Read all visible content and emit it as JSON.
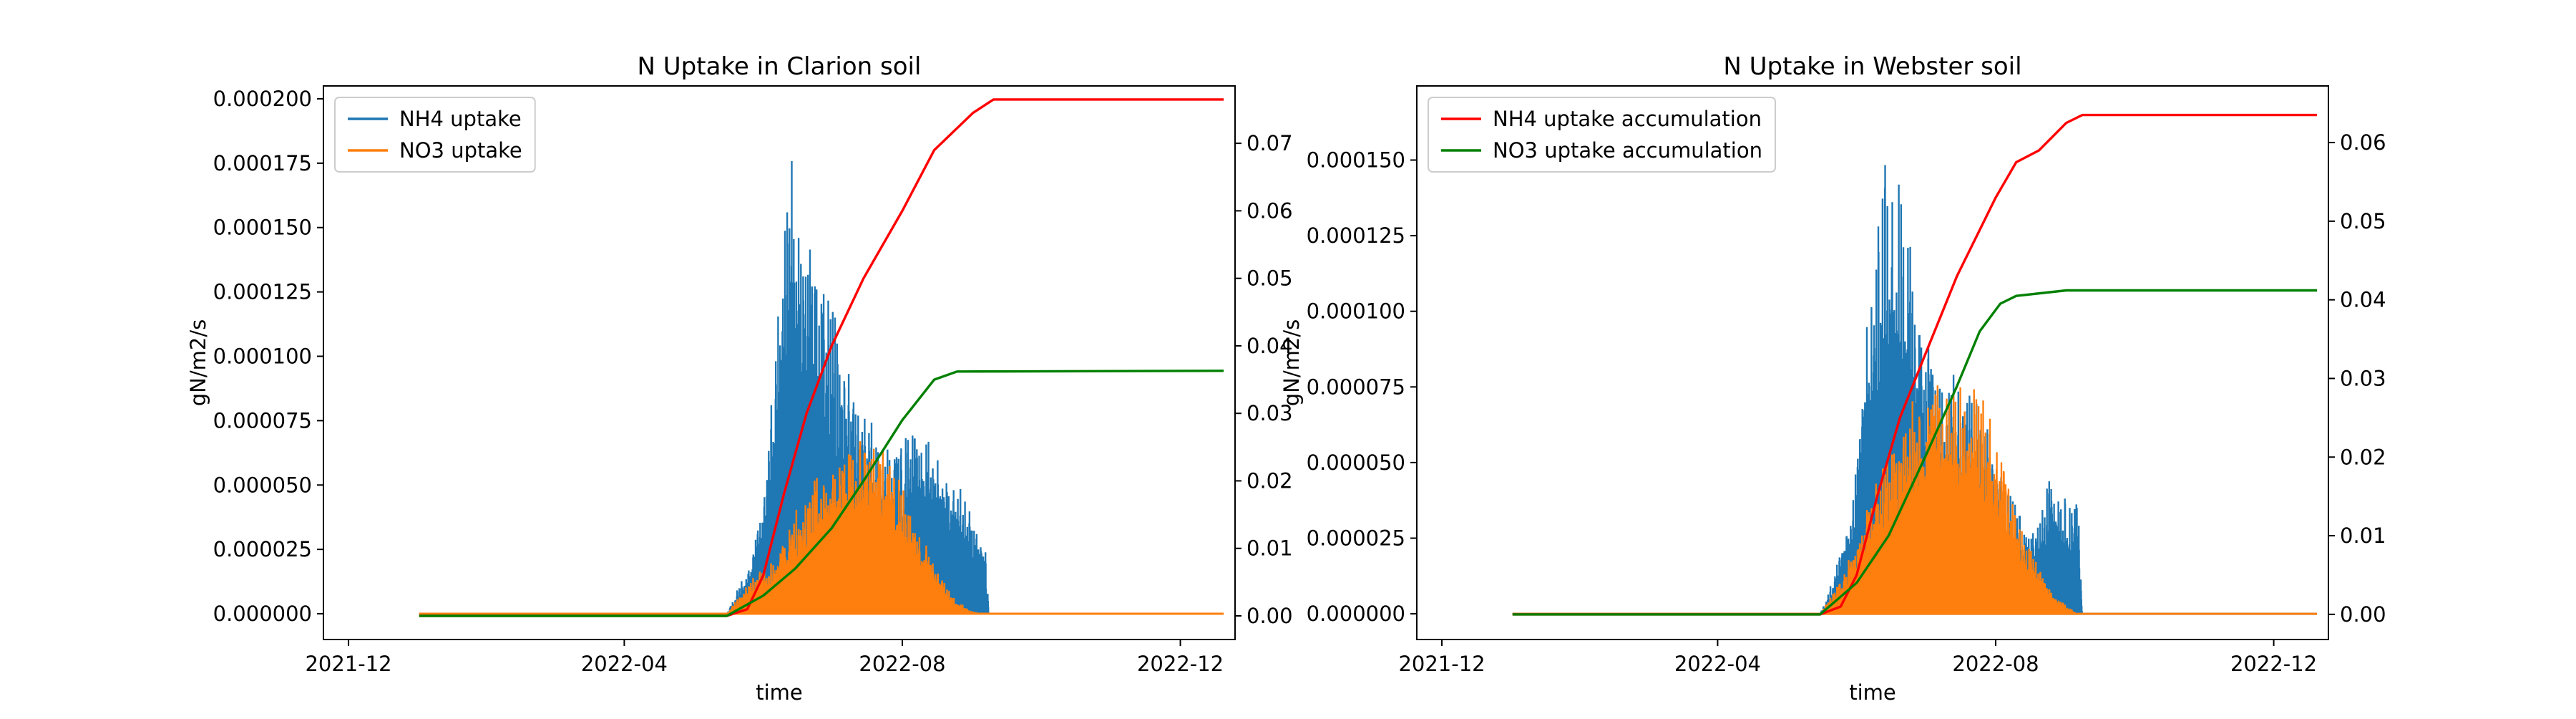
{
  "chart_data": [
    {
      "type": "line",
      "title": "N Uptake in Clarion soil",
      "xlabel": "time",
      "ylabel": "gN/m2/s",
      "xlim": [
        "2021-11-20",
        "2022-12-25"
      ],
      "x_ticks": [
        "2021-12",
        "2022-04",
        "2022-08",
        "2022-12"
      ],
      "ylim": [
        -1e-05,
        0.000205
      ],
      "y_ticks": [
        "0.000000",
        "0.000025",
        "0.000050",
        "0.000075",
        "0.000100",
        "0.000125",
        "0.000150",
        "0.000175",
        "0.000200"
      ],
      "y2lim": [
        -0.0035,
        0.0785
      ],
      "y2_ticks": [
        "0.00",
        "0.01",
        "0.02",
        "0.03",
        "0.04",
        "0.05",
        "0.06",
        "0.07"
      ],
      "legend": {
        "placement": "top-left",
        "entries": [
          "NH4 uptake",
          "NO3 uptake"
        ]
      },
      "series": [
        {
          "name": "NH4 uptake",
          "axis": "left",
          "style": "bars",
          "color": "#1f77b4",
          "points": [
            [
              "2022-05-16",
              0
            ],
            [
              "2022-05-20",
              8e-06
            ],
            [
              "2022-05-26",
              2.2e-05
            ],
            [
              "2022-06-01",
              4.5e-05
            ],
            [
              "2022-06-07",
              0.00011
            ],
            [
              "2022-06-11",
              0.000165
            ],
            [
              "2022-06-14",
              0.000195
            ],
            [
              "2022-06-18",
              0.00016
            ],
            [
              "2022-06-24",
              0.00014
            ],
            [
              "2022-07-01",
              0.000125
            ],
            [
              "2022-07-08",
              9.5e-05
            ],
            [
              "2022-07-15",
              8e-05
            ],
            [
              "2022-07-22",
              7e-05
            ],
            [
              "2022-07-29",
              6.5e-05
            ],
            [
              "2022-08-05",
              7.8e-05
            ],
            [
              "2022-08-12",
              6.8e-05
            ],
            [
              "2022-08-19",
              6.5e-05
            ],
            [
              "2022-08-26",
              5e-05
            ],
            [
              "2022-09-02",
              4e-05
            ],
            [
              "2022-09-06",
              3.2e-05
            ],
            [
              "2022-09-08",
              0
            ]
          ]
        },
        {
          "name": "NO3 uptake",
          "axis": "left",
          "style": "bars",
          "color": "#ff7f0e",
          "points": [
            [
              "2022-05-16",
              0
            ],
            [
              "2022-05-25",
              1.2e-05
            ],
            [
              "2022-06-05",
              2.2e-05
            ],
            [
              "2022-06-15",
              4e-05
            ],
            [
              "2022-06-25",
              5.5e-05
            ],
            [
              "2022-07-05",
              6.5e-05
            ],
            [
              "2022-07-15",
              7e-05
            ],
            [
              "2022-07-25",
              6.5e-05
            ],
            [
              "2022-08-05",
              4e-05
            ],
            [
              "2022-08-15",
              2e-05
            ],
            [
              "2022-08-25",
              5e-06
            ],
            [
              "2022-09-01",
              1e-06
            ],
            [
              "2022-09-05",
              0
            ]
          ]
        },
        {
          "name": "NH4 uptake accumulation",
          "axis": "right",
          "style": "line",
          "color": "#ff0000",
          "points": [
            [
              "2022-01-01",
              0
            ],
            [
              "2022-05-16",
              0
            ],
            [
              "2022-05-25",
              0.001
            ],
            [
              "2022-06-01",
              0.006
            ],
            [
              "2022-06-10",
              0.018
            ],
            [
              "2022-06-20",
              0.03
            ],
            [
              "2022-07-01",
              0.04
            ],
            [
              "2022-07-15",
              0.05
            ],
            [
              "2022-08-01",
              0.06
            ],
            [
              "2022-08-15",
              0.069
            ],
            [
              "2022-09-01",
              0.0745
            ],
            [
              "2022-09-10",
              0.0765
            ],
            [
              "2022-12-20",
              0.0765
            ]
          ]
        },
        {
          "name": "NO3 uptake accumulation",
          "axis": "right",
          "style": "line",
          "color": "#008000",
          "points": [
            [
              "2022-01-01",
              0
            ],
            [
              "2022-05-16",
              0
            ],
            [
              "2022-06-01",
              0.003
            ],
            [
              "2022-06-15",
              0.007
            ],
            [
              "2022-07-01",
              0.013
            ],
            [
              "2022-07-15",
              0.02
            ],
            [
              "2022-08-01",
              0.029
            ],
            [
              "2022-08-15",
              0.035
            ],
            [
              "2022-08-25",
              0.0362
            ],
            [
              "2022-12-20",
              0.0363
            ]
          ]
        }
      ]
    },
    {
      "type": "line",
      "title": "N Uptake in Webster soil",
      "xlabel": "time",
      "ylabel": "gN/m2/s",
      "xlim": [
        "2021-11-20",
        "2022-12-25"
      ],
      "x_ticks": [
        "2021-12",
        "2022-04",
        "2022-08",
        "2022-12"
      ],
      "ylim": [
        -8.5e-06,
        0.0001745
      ],
      "y_ticks": [
        "0.000000",
        "0.000025",
        "0.000050",
        "0.000075",
        "0.000100",
        "0.000125",
        "0.000150"
      ],
      "y2lim": [
        -0.0032,
        0.0672
      ],
      "y2_ticks": [
        "0.00",
        "0.01",
        "0.02",
        "0.03",
        "0.04",
        "0.05",
        "0.06"
      ],
      "legend": {
        "placement": "top-left",
        "entries": [
          "NH4 uptake accumulation",
          "NO3 uptake accumulation"
        ]
      },
      "series": [
        {
          "name": "NH4 uptake",
          "axis": "left",
          "style": "bars",
          "color": "#1f77b4",
          "points": [
            [
              "2022-05-16",
              0
            ],
            [
              "2022-05-20",
              8e-06
            ],
            [
              "2022-05-26",
              2.5e-05
            ],
            [
              "2022-06-01",
              5e-05
            ],
            [
              "2022-06-06",
              0.0001
            ],
            [
              "2022-06-11",
              0.00014
            ],
            [
              "2022-06-15",
              0.000165
            ],
            [
              "2022-06-20",
              0.00014
            ],
            [
              "2022-06-25",
              0.00012
            ],
            [
              "2022-07-01",
              9.5e-05
            ],
            [
              "2022-07-08",
              8e-05
            ],
            [
              "2022-07-15",
              8.2e-05
            ],
            [
              "2022-07-22",
              8e-05
            ],
            [
              "2022-07-29",
              6.5e-05
            ],
            [
              "2022-08-05",
              4.5e-05
            ],
            [
              "2022-08-12",
              3.5e-05
            ],
            [
              "2022-08-19",
              3e-05
            ],
            [
              "2022-08-26",
              4.8e-05
            ],
            [
              "2022-09-02",
              4e-05
            ],
            [
              "2022-09-06",
              4.5e-05
            ],
            [
              "2022-09-08",
              0
            ]
          ]
        },
        {
          "name": "NO3 uptake",
          "axis": "left",
          "style": "bars",
          "color": "#ff7f0e",
          "points": [
            [
              "2022-05-16",
              0
            ],
            [
              "2022-05-25",
              1.2e-05
            ],
            [
              "2022-06-05",
              3.5e-05
            ],
            [
              "2022-06-15",
              5.5e-05
            ],
            [
              "2022-06-25",
              7e-05
            ],
            [
              "2022-07-05",
              7.8e-05
            ],
            [
              "2022-07-15",
              8e-05
            ],
            [
              "2022-07-25",
              7.5e-05
            ],
            [
              "2022-08-05",
              5e-05
            ],
            [
              "2022-08-15",
              2.5e-05
            ],
            [
              "2022-08-25",
              8e-06
            ],
            [
              "2022-09-01",
              3e-06
            ],
            [
              "2022-09-06",
              0
            ]
          ]
        },
        {
          "name": "NH4 uptake accumulation",
          "axis": "right",
          "style": "line",
          "color": "#ff0000",
          "points": [
            [
              "2022-01-01",
              0
            ],
            [
              "2022-05-16",
              0
            ],
            [
              "2022-05-25",
              0.001
            ],
            [
              "2022-06-01",
              0.005
            ],
            [
              "2022-06-10",
              0.015
            ],
            [
              "2022-06-20",
              0.025
            ],
            [
              "2022-07-01",
              0.033
            ],
            [
              "2022-07-15",
              0.043
            ],
            [
              "2022-08-01",
              0.053
            ],
            [
              "2022-08-10",
              0.0575
            ],
            [
              "2022-08-20",
              0.059
            ],
            [
              "2022-09-01",
              0.0625
            ],
            [
              "2022-09-08",
              0.0635
            ],
            [
              "2022-12-20",
              0.0635
            ]
          ]
        },
        {
          "name": "NO3 uptake accumulation",
          "axis": "right",
          "style": "line",
          "color": "#008000",
          "points": [
            [
              "2022-01-01",
              0
            ],
            [
              "2022-05-16",
              0
            ],
            [
              "2022-06-01",
              0.004
            ],
            [
              "2022-06-15",
              0.01
            ],
            [
              "2022-07-01",
              0.02
            ],
            [
              "2022-07-15",
              0.029
            ],
            [
              "2022-07-25",
              0.036
            ],
            [
              "2022-08-03",
              0.0395
            ],
            [
              "2022-08-10",
              0.0405
            ],
            [
              "2022-09-01",
              0.0412
            ],
            [
              "2022-12-20",
              0.0412
            ]
          ]
        }
      ]
    }
  ]
}
